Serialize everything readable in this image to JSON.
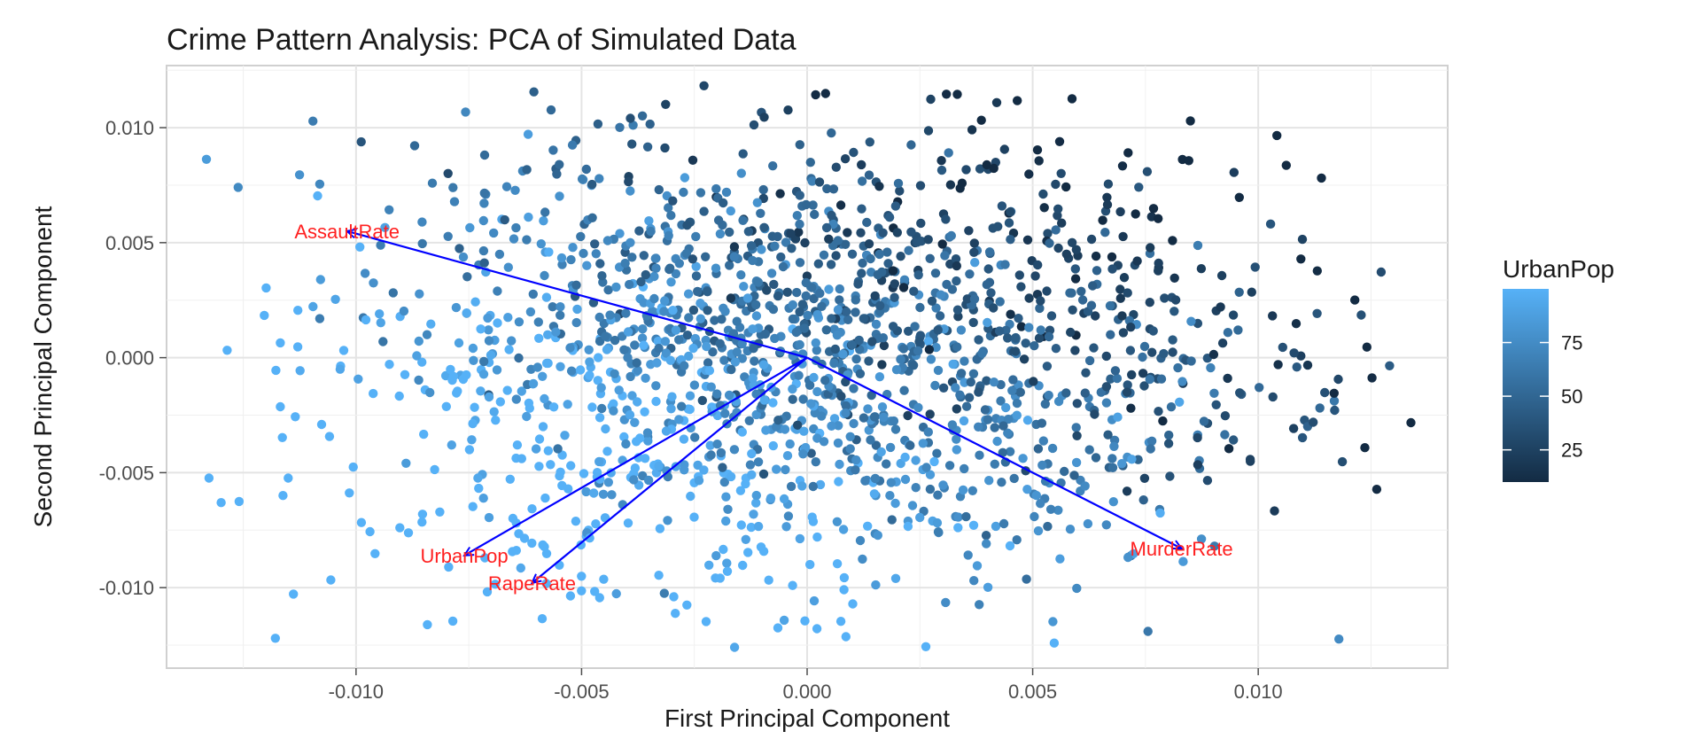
{
  "chart_data": {
    "type": "scatter",
    "title": "Crime Pattern Analysis: PCA of Simulated Data",
    "xlabel": "First Principal Component",
    "ylabel": "Second Principal Component",
    "xlim": [
      -0.0142,
      0.0142
    ],
    "ylim": [
      -0.0135,
      0.0127
    ],
    "x_ticks": [
      -0.01,
      -0.005,
      0.0,
      0.005,
      0.01
    ],
    "x_tick_labels": [
      "-0.010",
      "-0.005",
      "0.000",
      "0.005",
      "0.010"
    ],
    "y_ticks": [
      -0.01,
      -0.005,
      0.0,
      0.005,
      0.01
    ],
    "y_tick_labels": [
      "-0.010",
      "-0.005",
      "0.000",
      "0.005",
      "0.010"
    ],
    "grid": true,
    "point_cloud": {
      "description_count": 1800,
      "center": [
        0.0,
        0.0
      ],
      "x_spread": 0.0052,
      "y_spread": 0.0048,
      "color_by": "UrbanPop"
    },
    "loadings": [
      {
        "name": "AssaultRate",
        "x": -0.0102,
        "y": 0.0055
      },
      {
        "name": "UrbanPop",
        "x": -0.0076,
        "y": -0.0086
      },
      {
        "name": "RapeRate",
        "x": -0.0061,
        "y": -0.0098
      },
      {
        "name": "MurderRate",
        "x": 0.0083,
        "y": -0.0083
      }
    ],
    "arrow_color": "#0000ff",
    "label_color": "#ff2020",
    "legend": {
      "title": "UrbanPop",
      "position": "right",
      "range": [
        10,
        100
      ],
      "ticks": [
        25,
        50,
        75
      ],
      "tick_labels": [
        "25",
        "50",
        "75"
      ],
      "color_low": "#132b43",
      "color_high": "#56b1f7"
    }
  }
}
